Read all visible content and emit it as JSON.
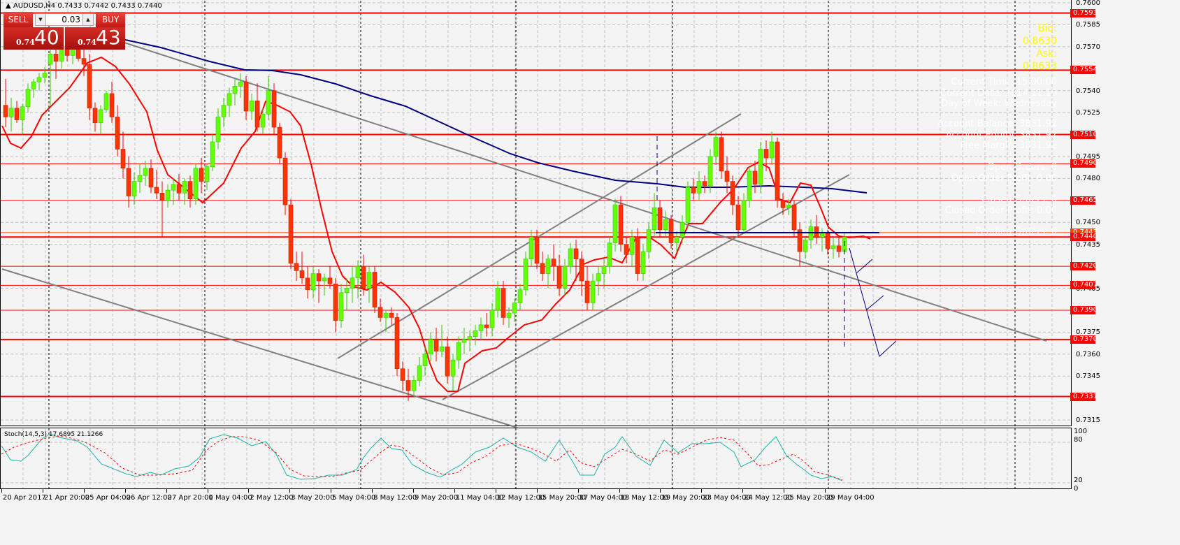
{
  "header": {
    "symbol_line": "AUDUSD,H4  0.7433 0.7442 0.7433 0.7440"
  },
  "trade_panel": {
    "sell_label": "SELL",
    "buy_label": "BUY",
    "lot_value": "0.03",
    "sell_price_prefix": "0.74",
    "sell_price_main": "40",
    "buy_price_prefix": "0.74",
    "buy_price_main": "43",
    "down_icon": "▼",
    "up_icon": "▲"
  },
  "overlay": {
    "bid": "Bid: 0.8630",
    "ask": "Ask: 0.8633",
    "info_lines": [
      "Current Time: 15:00:00",
      "Current Date: 2014.11.19",
      "Day of Week: Wednesday",
      "Account Balance: 3831.92",
      "Account Equity: 3831.92",
      "Free Margin: 3831.92",
      "Open Orders: 0",
      "Open Order Profit: 0.00",
      "Closed Orders: 0",
      "Closed Order Profit: 0.00",
      "Pending Orders: 0"
    ]
  },
  "price_axis": {
    "ticks": [
      "0.7600",
      "0.7585",
      "0.7570",
      "0.7540",
      "0.7525",
      "0.7495",
      "0.7480",
      "0.7450",
      "0.7435",
      "0.7405",
      "0.7375",
      "0.7360",
      "0.7345",
      "0.7315"
    ],
    "levels": [
      {
        "value": "0.7593",
        "style": "red"
      },
      {
        "value": "0.7554",
        "style": "red"
      },
      {
        "value": "0.7510",
        "style": "red"
      },
      {
        "value": "0.7490",
        "style": "red"
      },
      {
        "value": "0.7465",
        "style": "red"
      },
      {
        "value": "0.7443",
        "style": "orange"
      },
      {
        "value": "0.7440",
        "style": "red"
      },
      {
        "value": "0.7420",
        "style": "red"
      },
      {
        "value": "0.7407",
        "style": "red"
      },
      {
        "value": "0.7390",
        "style": "red"
      },
      {
        "value": "0.7370",
        "style": "red"
      },
      {
        "value": "0.7331",
        "style": "red"
      }
    ]
  },
  "stochastic": {
    "title": "Stoch(14,5,3) 17.6895 21.1266",
    "ticks": [
      "100",
      "80",
      "20",
      "0"
    ]
  },
  "time_axis": {
    "labels": [
      "20 Apr 2017",
      "21 Apr 20:00",
      "25 Apr 04:00",
      "26 Apr 12:00",
      "27 Apr 20:00",
      "1 May 04:00",
      "2 May 12:00",
      "3 May 20:00",
      "5 May 04:00",
      "8 May 12:00",
      "9 May 20:00",
      "11 May 04:00",
      "12 May 12:00",
      "15 May 20:00",
      "17 May 04:00",
      "18 May 12:00",
      "19 May 20:00",
      "23 May 04:00",
      "24 May 12:00",
      "25 May 20:00",
      "29 May 04:00"
    ]
  },
  "colors": {
    "bull_candle": "#66ff00",
    "bear_candle": "#ff3300",
    "level_line": "#ff0000",
    "ma_fast": "#ff0000",
    "ma_slow": "#000080",
    "trendline": "#808080",
    "stoch_main": "#20b2aa",
    "stoch_signal": "#ff0000",
    "bid_ask_text": "#ffff00"
  }
}
